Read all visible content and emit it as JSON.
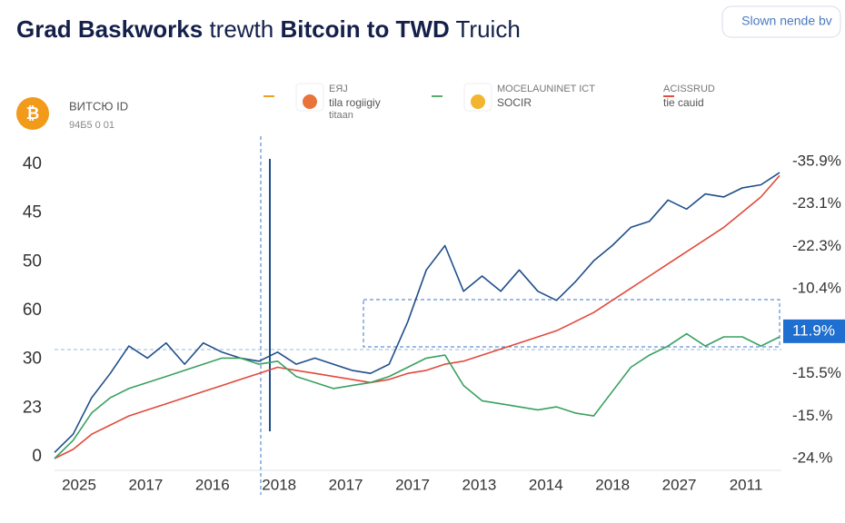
{
  "chart_data": {
    "type": "line",
    "title_parts": [
      {
        "text": "Grad Baskworks",
        "bold": true
      },
      {
        "text": " trewth ",
        "bold": false
      },
      {
        "text": "Bitcoin to TWD",
        "bold": true
      },
      {
        "text": " Truich",
        "bold": false
      }
    ],
    "button": "Slown nende bv",
    "asset": {
      "name": "ВИТСЮ ID",
      "price": "94Б5 0 01"
    },
    "legend": [
      {
        "title": "EЯJ",
        "subtitle": "tila rogiigiy",
        "detail": "titaan",
        "color": "#f0a020"
      },
      {
        "title": "MOCELAUNINET ICT",
        "subtitle": "SOCIR",
        "color": "#5aaa6a"
      },
      {
        "title": "ACISSRUD",
        "subtitle": "tie cauid",
        "color": "#e05040"
      }
    ],
    "y_labels": [
      "40",
      "45",
      "50",
      "60",
      "30",
      "23",
      "0"
    ],
    "y2_labels": [
      "-35.9%",
      "-23.1%",
      "-22.3%",
      "-10.4%",
      "11.9%",
      "-15.5%",
      "-15.%",
      "-24.%"
    ],
    "y2_highlight": 4,
    "x_labels": [
      "2025",
      "2017",
      "2016",
      "2018",
      "2017",
      "2017",
      "2013",
      "2014",
      "2018",
      "2027",
      "2011"
    ],
    "ylim": [
      0,
      100
    ],
    "series": [
      {
        "color": "#1f4e8c",
        "values": [
          2,
          8,
          20,
          28,
          37,
          33,
          38,
          31,
          38,
          35,
          33,
          32,
          35,
          31,
          33,
          31,
          29,
          28,
          31,
          45,
          62,
          70,
          55,
          60,
          55,
          62,
          55,
          52,
          58,
          65,
          70,
          76,
          78,
          85,
          82,
          87,
          86,
          89,
          90,
          94
        ]
      },
      {
        "color": "#e04a3a",
        "values": [
          0,
          3,
          8,
          11,
          14,
          16,
          18,
          20,
          22,
          24,
          26,
          28,
          30,
          29,
          28,
          27,
          26,
          25,
          26,
          28,
          29,
          31,
          32,
          34,
          36,
          38,
          40,
          42,
          45,
          48,
          52,
          56,
          60,
          64,
          68,
          72,
          76,
          81,
          86,
          93
        ]
      },
      {
        "color": "#3aa060",
        "values": [
          0,
          6,
          15,
          20,
          23,
          25,
          27,
          29,
          31,
          33,
          33,
          31,
          32,
          27,
          25,
          23,
          24,
          25,
          27,
          30,
          33,
          34,
          24,
          19,
          18,
          17,
          16,
          17,
          15,
          14,
          22,
          30,
          34,
          37,
          41,
          37,
          40,
          40,
          37,
          40
        ]
      }
    ]
  }
}
